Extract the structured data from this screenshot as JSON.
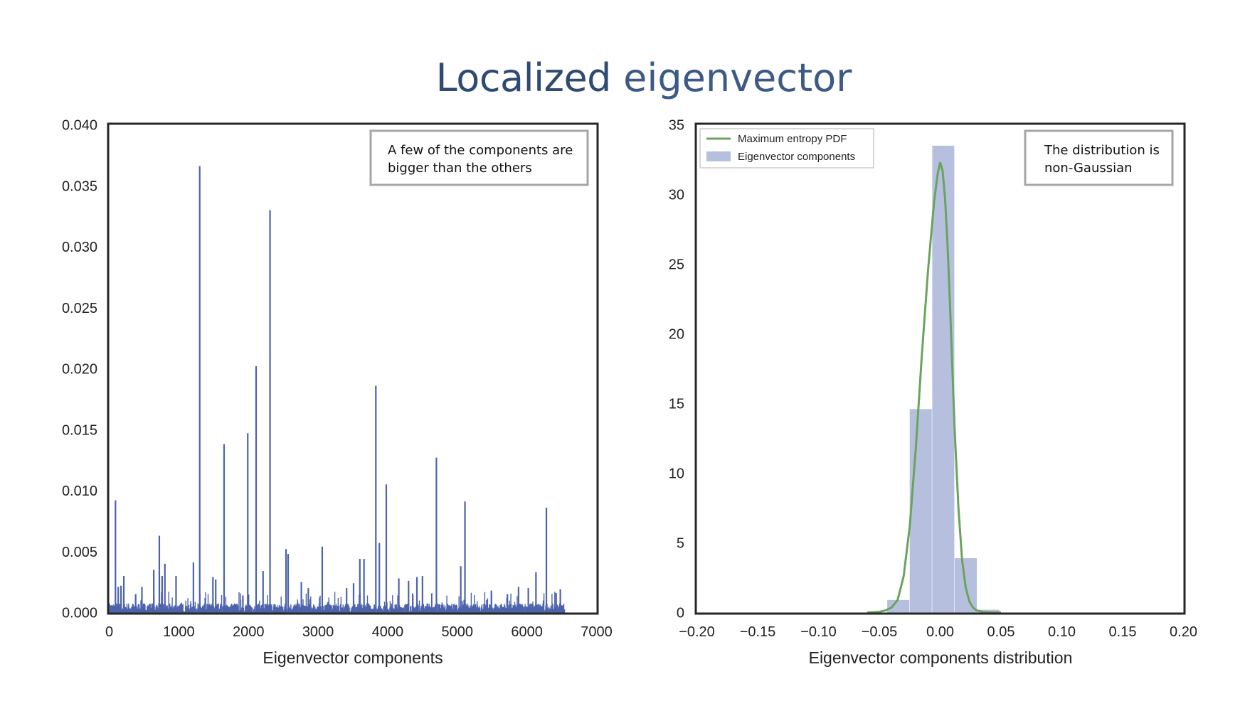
{
  "title": {
    "strong": "Localized",
    "light": " eigenvector"
  },
  "colors": {
    "line": "#4c63ab",
    "hist": "#b6c0de",
    "pdf": "#6aa35e",
    "title": "#2f4a73"
  },
  "chart_data": [
    {
      "type": "line",
      "xlabel": "Eigenvector components",
      "ylabel": "",
      "xlim": [
        0,
        7000
      ],
      "ylim": [
        0,
        0.04
      ],
      "xticks": [
        0,
        1000,
        2000,
        3000,
        4000,
        5000,
        6000,
        7000
      ],
      "yticks": [
        "0.000",
        "0.005",
        "0.010",
        "0.015",
        "0.020",
        "0.025",
        "0.030",
        "0.035",
        "0.040"
      ],
      "n_points": 6550,
      "spikes": [
        {
          "x": 90,
          "y": 0.0092
        },
        {
          "x": 130,
          "y": 0.0021
        },
        {
          "x": 170,
          "y": 0.0022
        },
        {
          "x": 210,
          "y": 0.003
        },
        {
          "x": 380,
          "y": 0.0015
        },
        {
          "x": 470,
          "y": 0.0021
        },
        {
          "x": 640,
          "y": 0.0035
        },
        {
          "x": 720,
          "y": 0.0063
        },
        {
          "x": 760,
          "y": 0.003
        },
        {
          "x": 800,
          "y": 0.004
        },
        {
          "x": 960,
          "y": 0.003
        },
        {
          "x": 1210,
          "y": 0.0041
        },
        {
          "x": 1300,
          "y": 0.0366
        },
        {
          "x": 1490,
          "y": 0.0029
        },
        {
          "x": 1530,
          "y": 0.0027
        },
        {
          "x": 1650,
          "y": 0.0138
        },
        {
          "x": 1920,
          "y": 0.0014
        },
        {
          "x": 1990,
          "y": 0.0147
        },
        {
          "x": 2110,
          "y": 0.0202
        },
        {
          "x": 2210,
          "y": 0.0034
        },
        {
          "x": 2310,
          "y": 0.033
        },
        {
          "x": 2540,
          "y": 0.0052
        },
        {
          "x": 2570,
          "y": 0.0048
        },
        {
          "x": 2760,
          "y": 0.0025
        },
        {
          "x": 2860,
          "y": 0.002
        },
        {
          "x": 3060,
          "y": 0.0054
        },
        {
          "x": 3410,
          "y": 0.002
        },
        {
          "x": 3510,
          "y": 0.0024
        },
        {
          "x": 3600,
          "y": 0.0044
        },
        {
          "x": 3660,
          "y": 0.0044
        },
        {
          "x": 3830,
          "y": 0.0186
        },
        {
          "x": 3880,
          "y": 0.0057
        },
        {
          "x": 3980,
          "y": 0.0105
        },
        {
          "x": 4160,
          "y": 0.0028
        },
        {
          "x": 4300,
          "y": 0.0026
        },
        {
          "x": 4420,
          "y": 0.0029
        },
        {
          "x": 4500,
          "y": 0.003
        },
        {
          "x": 4700,
          "y": 0.0127
        },
        {
          "x": 5050,
          "y": 0.0038
        },
        {
          "x": 5110,
          "y": 0.0091
        },
        {
          "x": 5490,
          "y": 0.0018
        },
        {
          "x": 5720,
          "y": 0.0015
        },
        {
          "x": 5880,
          "y": 0.0021
        },
        {
          "x": 6020,
          "y": 0.002
        },
        {
          "x": 6130,
          "y": 0.0033
        },
        {
          "x": 6280,
          "y": 0.0086
        },
        {
          "x": 6420,
          "y": 0.0016
        },
        {
          "x": 6480,
          "y": 0.0019
        }
      ],
      "annotation": [
        "A few of the components are",
        "bigger than the others"
      ]
    },
    {
      "type": "bar",
      "xlabel": "Eigenvector components distribution",
      "ylabel": "",
      "xlim": [
        -0.2,
        0.2
      ],
      "ylim": [
        0,
        35
      ],
      "xticks": [
        "−0.20",
        "−0.15",
        "−0.10",
        "−0.05",
        "0.00",
        "0.05",
        "0.10",
        "0.15",
        "0.20"
      ],
      "yticks": [
        "0",
        "5",
        "10",
        "15",
        "20",
        "25",
        "30",
        "35"
      ],
      "hist_bins": [
        {
          "x0": -0.0435,
          "x1": -0.025,
          "height": 0.9
        },
        {
          "x0": -0.025,
          "x1": -0.0065,
          "height": 14.6
        },
        {
          "x0": -0.0065,
          "x1": 0.012,
          "height": 33.5
        },
        {
          "x0": 0.012,
          "x1": 0.0305,
          "height": 3.9
        },
        {
          "x0": 0.0305,
          "x1": 0.049,
          "height": 0.2
        }
      ],
      "pdf": {
        "name": "Maximum entropy PDF",
        "x": [
          -0.06,
          -0.05,
          -0.045,
          -0.04,
          -0.035,
          -0.03,
          -0.025,
          -0.02,
          -0.015,
          -0.01,
          -0.005,
          -0.002,
          0.0,
          0.002,
          0.004,
          0.006,
          0.008,
          0.01,
          0.012,
          0.015,
          0.018,
          0.021,
          0.024,
          0.027,
          0.03,
          0.035,
          0.04,
          0.045,
          0.05
        ],
        "y": [
          0.0,
          0.05,
          0.15,
          0.35,
          0.9,
          2.6,
          6.2,
          11.8,
          18.5,
          24.5,
          29.5,
          31.5,
          32.3,
          31.7,
          29.8,
          26.5,
          22.3,
          17.6,
          13.0,
          7.5,
          3.8,
          1.8,
          0.8,
          0.35,
          0.15,
          0.05,
          0.02,
          0.0,
          0.0
        ]
      },
      "legend": [
        "Maximum entropy PDF",
        "Eigenvector components"
      ],
      "legend_position": "top-left",
      "annotation": [
        "The distribution is",
        "non-Gaussian"
      ]
    }
  ]
}
